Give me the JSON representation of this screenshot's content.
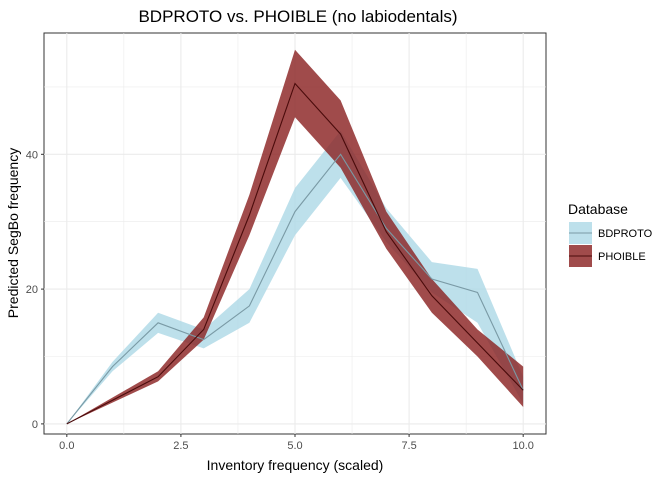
{
  "chart_data": {
    "type": "line",
    "title": "BDPROTO vs. PHOIBLE (no labiodentals)",
    "xlabel": "Inventory frequency (scaled)",
    "ylabel": "Predicted SegBo frequency",
    "xlim": [
      -0.5,
      10.5
    ],
    "ylim": [
      -1.5,
      58
    ],
    "x_ticks": [
      0,
      2.5,
      5,
      7.5,
      10
    ],
    "x_tick_labels": [
      "0.0",
      "2.5",
      "5.0",
      "7.5",
      "10.0"
    ],
    "y_ticks": [
      0,
      20,
      40
    ],
    "y_tick_labels": [
      "0",
      "20",
      "40"
    ],
    "grid": true,
    "legend": {
      "title": "Database",
      "placement": "right"
    },
    "series": [
      {
        "name": "BDPROTO",
        "fill": "#add8e6",
        "line": "#7a9aa5",
        "x": [
          0,
          1,
          2,
          3,
          4,
          5,
          6,
          7,
          8,
          9,
          10
        ],
        "y": [
          0,
          8.5,
          15,
          12.5,
          17.5,
          31.5,
          40,
          29,
          21.5,
          19.5,
          5
        ],
        "lower": [
          0,
          7.8,
          13.5,
          11.2,
          15,
          28,
          36.5,
          27,
          19.5,
          15,
          3
        ],
        "upper": [
          0,
          9.2,
          16.5,
          14,
          20,
          35,
          43.5,
          32,
          24,
          23,
          7
        ]
      },
      {
        "name": "PHOIBLE",
        "fill": "#8b2323",
        "line": "#4a0b0b",
        "x": [
          0,
          2,
          3,
          4,
          5,
          6,
          7,
          8,
          9,
          10
        ],
        "y": [
          0,
          7,
          14,
          31,
          50.5,
          43,
          28.5,
          19,
          12,
          5
        ],
        "lower": [
          0,
          6.3,
          12.5,
          28,
          45.5,
          38,
          26,
          16.5,
          10,
          2.5
        ],
        "upper": [
          0,
          7.8,
          15.8,
          34,
          55.5,
          48,
          31.5,
          21.5,
          14,
          8.5
        ]
      }
    ]
  }
}
